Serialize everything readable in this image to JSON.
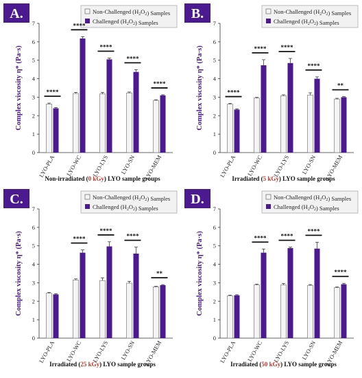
{
  "figure": {
    "ylabel": "Complex viscosity η* (Pa·s)",
    "legend": {
      "non_challenged": "Non-Challenged (H2O2) Samples",
      "challenged": "Challenged (H2O2) Samples"
    },
    "colors": {
      "non_challenged_fill": "#f4f4f4",
      "non_challenged_stroke": "#7a7a7a",
      "challenged": "#4b1a91",
      "badge": "#4b1a91",
      "dose_text": "#c0392b"
    }
  },
  "chart_data": [
    {
      "type": "bar",
      "panel": "A.",
      "xlabel_parts": [
        "Non-irradiated (",
        "0 kGy",
        ") LYO sample groups"
      ],
      "categories": [
        "LYO-PLA",
        "LYO-WC",
        "LYO-LYS",
        "LYO-SN",
        "LYO-MEM"
      ],
      "ylim": [
        0,
        7
      ],
      "yticks": [
        0,
        1,
        2,
        3,
        4,
        5,
        6,
        7
      ],
      "series": [
        {
          "name": "Non-Challenged (H2O2) Samples",
          "values": [
            2.63,
            3.2,
            3.18,
            3.23,
            2.83
          ],
          "errors": [
            0.05,
            0.06,
            0.08,
            0.05,
            0.03
          ]
        },
        {
          "name": "Challenged (H2O2) Samples",
          "values": [
            2.4,
            6.18,
            5.05,
            4.37,
            3.1
          ],
          "errors": [
            0.04,
            0.1,
            0.07,
            0.12,
            0.03
          ]
        }
      ],
      "significance": [
        "****",
        "****",
        "****",
        "****",
        "****"
      ]
    },
    {
      "type": "bar",
      "panel": "B.",
      "xlabel_parts": [
        "Irradiated (",
        "5 kGy",
        ") LYO sample groups"
      ],
      "categories": [
        "LYO-PLA",
        "LYO-WC",
        "LYO-LYS",
        "LYO-SN",
        "LYO-MEM"
      ],
      "ylim": [
        0,
        7
      ],
      "yticks": [
        0,
        1,
        2,
        3,
        4,
        5,
        6,
        7
      ],
      "series": [
        {
          "name": "Non-Challenged (H2O2) Samples",
          "values": [
            2.62,
            2.95,
            3.08,
            3.12,
            2.9
          ],
          "errors": [
            0.04,
            0.04,
            0.05,
            0.12,
            0.04
          ]
        },
        {
          "name": "Challenged (H2O2) Samples",
          "values": [
            2.33,
            4.73,
            4.85,
            4.0,
            3.0
          ],
          "errors": [
            0.04,
            0.3,
            0.25,
            0.1,
            0.03
          ]
        }
      ],
      "significance": [
        "****",
        "****",
        "****",
        "****",
        "**"
      ]
    },
    {
      "type": "bar",
      "panel": "C.",
      "xlabel_parts": [
        "Irradiated (",
        "25 kGy",
        ") LYO sample groups"
      ],
      "categories": [
        "LYO-PLA",
        "LYO-WC",
        "LYO-LYS",
        "LYO-SN",
        "LYO-MEM"
      ],
      "ylim": [
        0,
        7
      ],
      "yticks": [
        0,
        1,
        2,
        3,
        4,
        5,
        6,
        7
      ],
      "series": [
        {
          "name": "Non-Challenged (H2O2) Samples",
          "values": [
            2.43,
            3.15,
            3.12,
            2.98,
            2.78
          ],
          "errors": [
            0.04,
            0.06,
            0.15,
            0.1,
            0.03
          ]
        },
        {
          "name": "Challenged (H2O2) Samples",
          "values": [
            2.37,
            4.63,
            4.97,
            4.58,
            2.87
          ],
          "errors": [
            0.04,
            0.15,
            0.25,
            0.35,
            0.03
          ]
        }
      ],
      "significance": [
        "",
        "****",
        "****",
        "****",
        "**"
      ]
    },
    {
      "type": "bar",
      "panel": "D.",
      "xlabel_parts": [
        "Irradiated (",
        "50 kGy",
        ") LYO sample groups"
      ],
      "categories": [
        "LYO-PLA",
        "LYO-WC",
        "LYO-LYS",
        "LYO-SN",
        "LYO-MEM"
      ],
      "ylim": [
        0,
        7
      ],
      "yticks": [
        0,
        1,
        2,
        3,
        4,
        5,
        6,
        7
      ],
      "series": [
        {
          "name": "Non-Challenged (H2O2) Samples",
          "values": [
            2.3,
            2.88,
            2.88,
            2.86,
            2.74
          ],
          "errors": [
            0.03,
            0.05,
            0.08,
            0.04,
            0.04
          ]
        },
        {
          "name": "Challenged (H2O2) Samples",
          "values": [
            2.32,
            4.63,
            4.88,
            4.85,
            2.92
          ],
          "errors": [
            0.03,
            0.2,
            0.05,
            0.35,
            0.05
          ]
        }
      ],
      "significance": [
        "",
        "****",
        "****",
        "****",
        "****"
      ]
    }
  ]
}
